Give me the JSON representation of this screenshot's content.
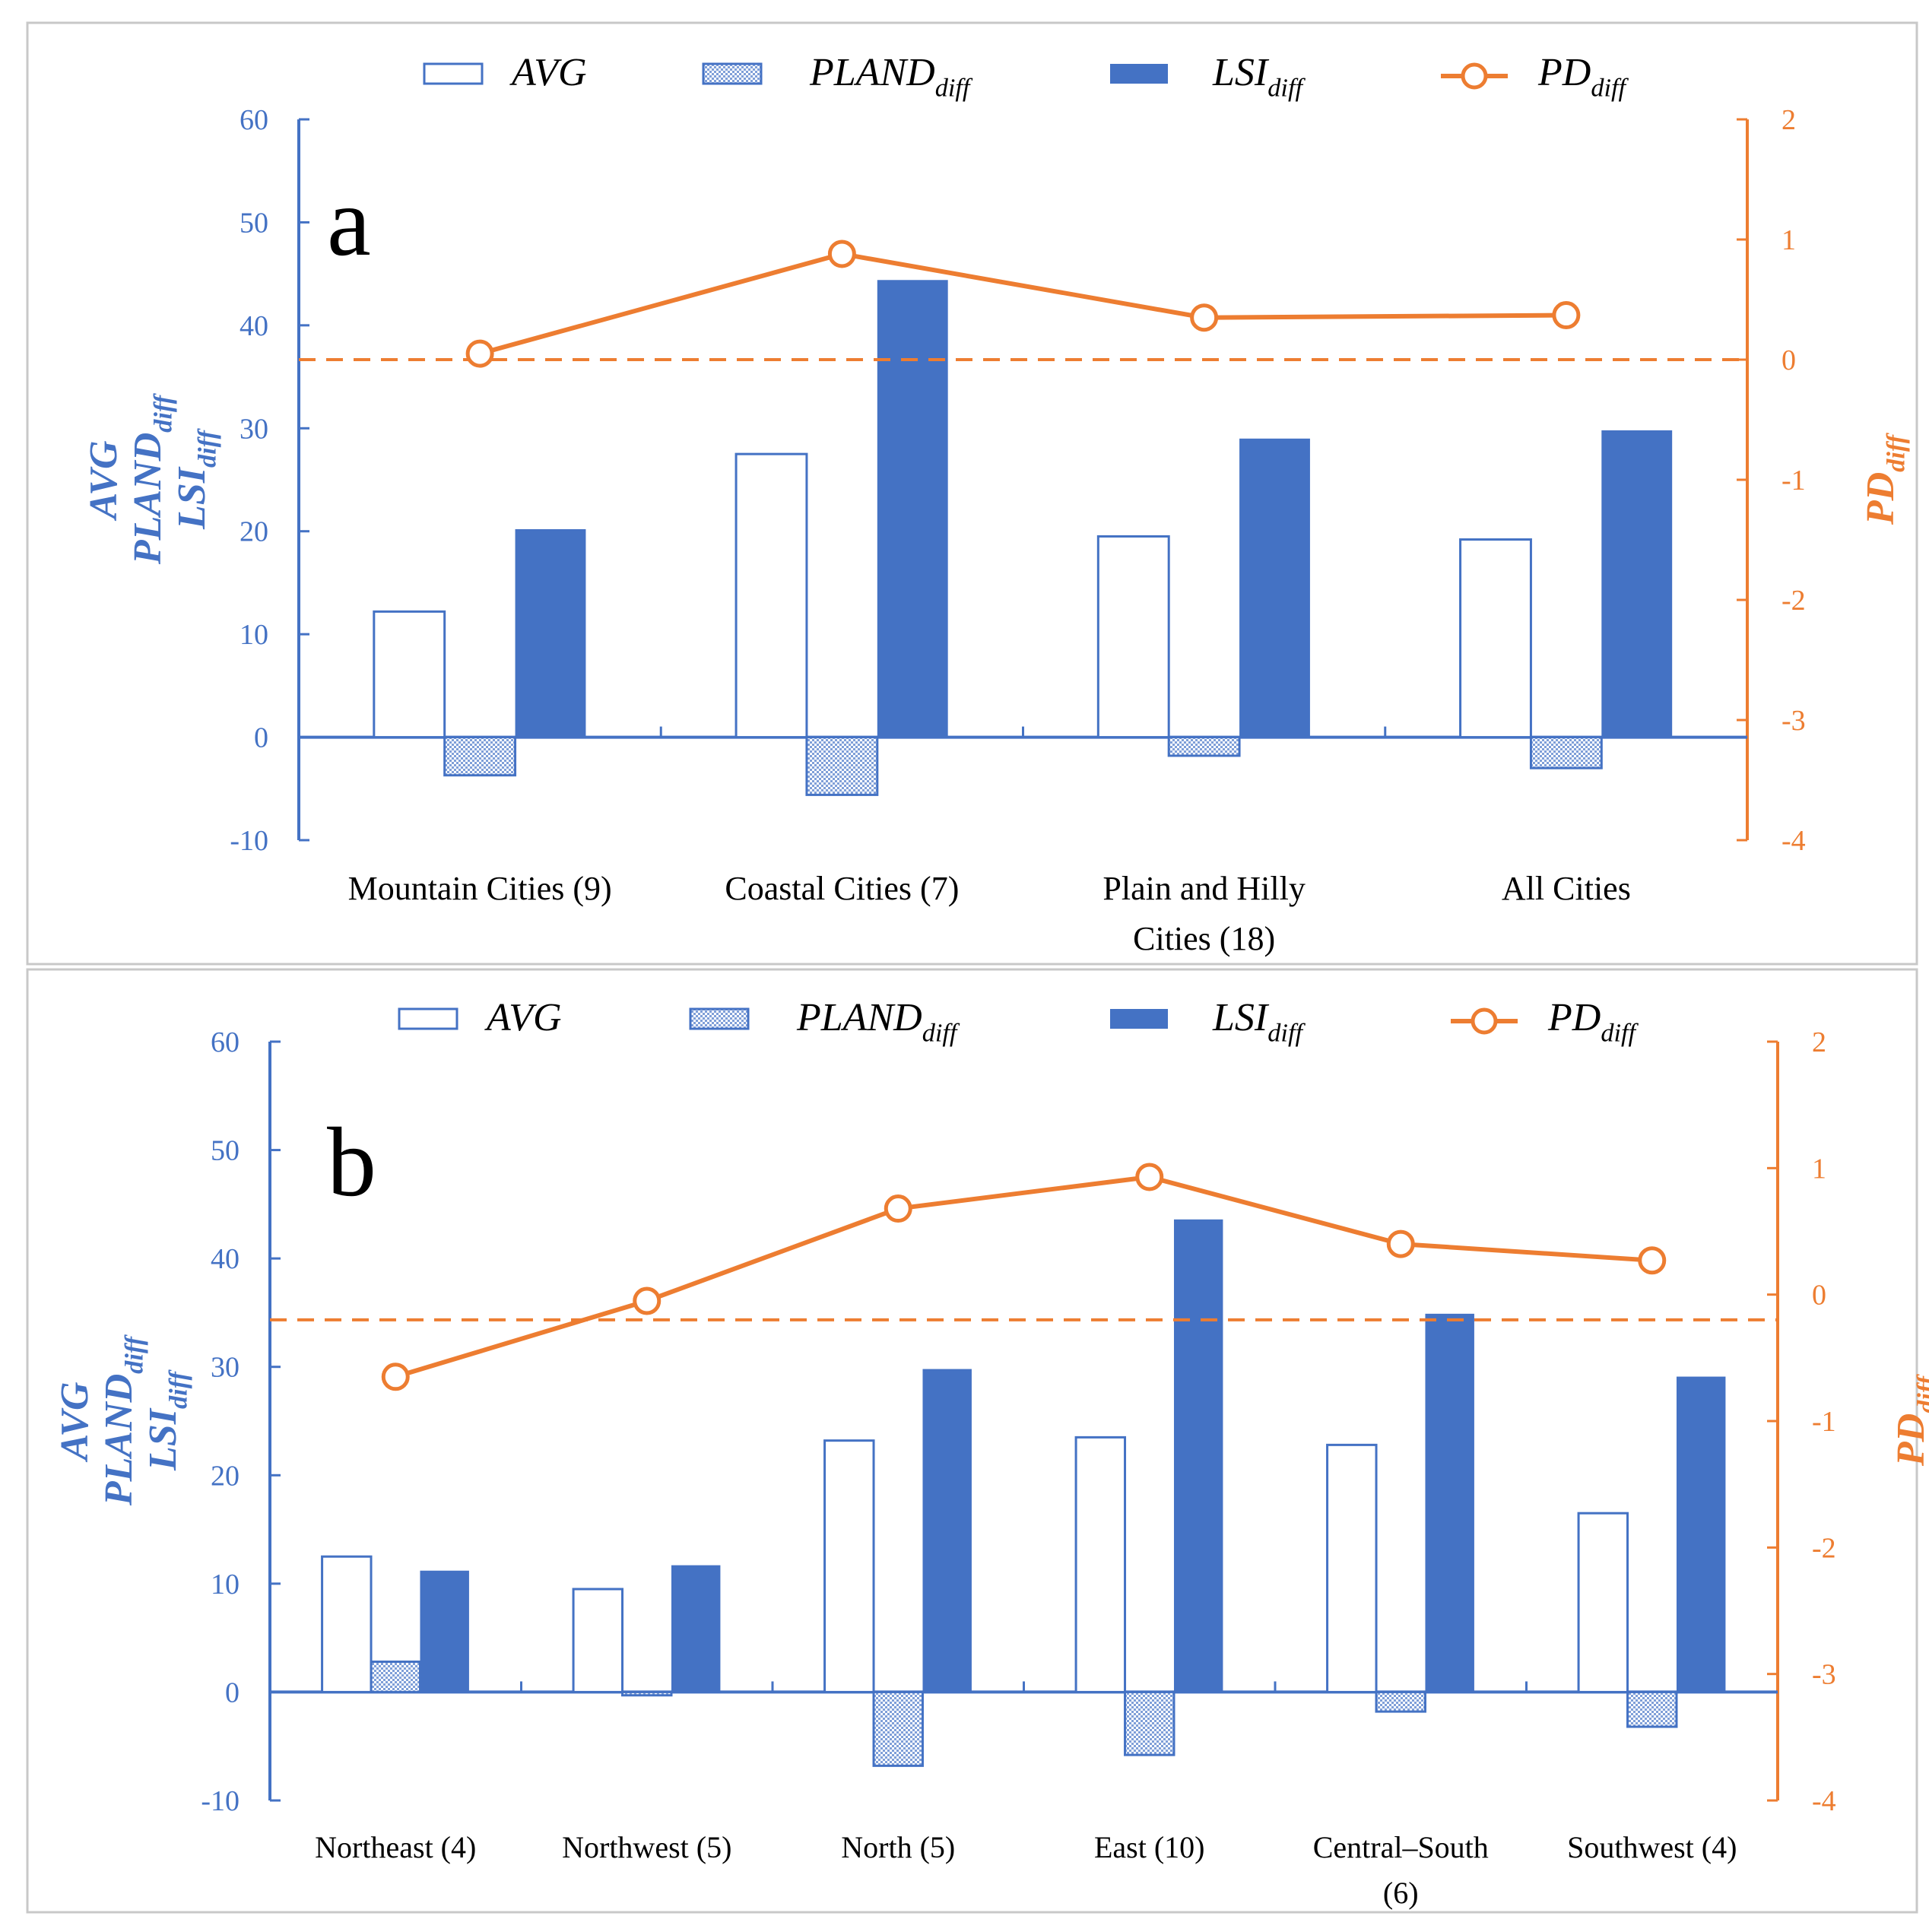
{
  "colors": {
    "blue": "#4472C4",
    "orange": "#ED7D31",
    "hatch": "#7f9fd8",
    "frame": "#c8c8c8"
  },
  "legend": {
    "avg": "AVG",
    "pland_base": "PLAND",
    "lsi_base": "LSI",
    "pd_base": "PD",
    "sub": "diff"
  },
  "left_axis_labels": {
    "avg": "AVG",
    "pland": "PLAND",
    "lsi": "LSI",
    "sub": "diff"
  },
  "right_axis_label": {
    "base": "PD",
    "sub": "diff"
  },
  "chart_data": [
    {
      "panel": "a",
      "type": "bar",
      "categories": [
        [
          "Mountain Cities (9)"
        ],
        [
          "Coastal Cities (7)"
        ],
        [
          "Plain and Hilly",
          "Cities (18)"
        ],
        [
          "All Cities"
        ]
      ],
      "series": [
        {
          "name": "AVG",
          "axis": "left",
          "style": "outline",
          "values": [
            12.2,
            27.5,
            19.5,
            19.2
          ]
        },
        {
          "name": "PLAND_diff",
          "axis": "left",
          "style": "hatch",
          "values": [
            -3.7,
            -5.6,
            -1.8,
            -3.0
          ]
        },
        {
          "name": "LSI_diff",
          "axis": "left",
          "style": "solid",
          "values": [
            20.2,
            44.4,
            29.0,
            29.8
          ]
        },
        {
          "name": "PD_diff",
          "axis": "right",
          "type": "line",
          "values": [
            0.05,
            0.88,
            0.35,
            0.37
          ]
        }
      ],
      "ylim_left": [
        -10,
        60
      ],
      "yticks_left": [
        -10,
        0,
        10,
        20,
        30,
        40,
        50,
        60
      ],
      "ylim_right": [
        -4,
        2
      ],
      "yticks_right": [
        -4,
        -3,
        -2,
        -1,
        0,
        1,
        2
      ],
      "reference_line_right": 0
    },
    {
      "panel": "b",
      "type": "bar",
      "categories": [
        [
          "Northeast (4)"
        ],
        [
          "Northwest (5)"
        ],
        [
          "North (5)"
        ],
        [
          "East (10)"
        ],
        [
          "Central–South",
          "(6)"
        ],
        [
          "Southwest (4)"
        ]
      ],
      "series": [
        {
          "name": "AVG",
          "axis": "left",
          "style": "outline",
          "values": [
            12.5,
            9.5,
            23.2,
            23.5,
            22.8,
            16.5
          ]
        },
        {
          "name": "PLAND_diff",
          "axis": "left",
          "style": "hatch",
          "values": [
            2.8,
            -0.3,
            -6.8,
            -5.8,
            -1.8,
            -3.2
          ]
        },
        {
          "name": "LSI_diff",
          "axis": "left",
          "style": "solid",
          "values": [
            11.2,
            11.7,
            29.8,
            43.6,
            34.9,
            29.1
          ]
        },
        {
          "name": "PD_diff",
          "axis": "right",
          "type": "line",
          "values": [
            -0.65,
            -0.05,
            0.68,
            0.93,
            0.4,
            0.27
          ]
        }
      ],
      "ylim_left": [
        -10,
        60
      ],
      "yticks_left": [
        -10,
        0,
        10,
        20,
        30,
        40,
        50,
        60
      ],
      "ylim_right": [
        -4,
        2
      ],
      "yticks_right": [
        -4,
        -3,
        -2,
        -1,
        0,
        1,
        2
      ],
      "reference_line_right": -0.2
    }
  ]
}
